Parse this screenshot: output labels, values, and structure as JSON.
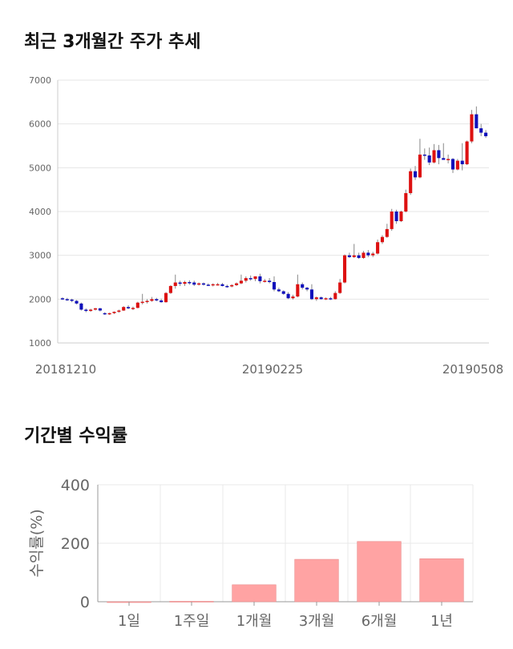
{
  "titles": {
    "price_chart": "최근 3개월간 주가 추세",
    "returns_chart": "기간별 수익률"
  },
  "chart_data": [
    {
      "type": "candlestick",
      "ylim": [
        1000,
        7000
      ],
      "yticks": [
        1000,
        2000,
        3000,
        4000,
        5000,
        6000,
        7000
      ],
      "xtick_labels": [
        "20181210",
        "20190225",
        "20190508"
      ],
      "grid": true,
      "colors": {
        "up": "#dd1111",
        "down": "#1111bb",
        "wick": "#888888"
      },
      "ohlc": [
        [
          2020,
          2040,
          1980,
          2000
        ],
        [
          2000,
          2030,
          1960,
          1990
        ],
        [
          1990,
          2010,
          1930,
          1960
        ],
        [
          1960,
          1980,
          1880,
          1900
        ],
        [
          1900,
          1920,
          1740,
          1760
        ],
        [
          1760,
          1790,
          1700,
          1730
        ],
        [
          1730,
          1780,
          1710,
          1760
        ],
        [
          1760,
          1800,
          1740,
          1790
        ],
        [
          1790,
          1800,
          1720,
          1740
        ],
        [
          1680,
          1700,
          1640,
          1660
        ],
        [
          1660,
          1690,
          1640,
          1680
        ],
        [
          1680,
          1720,
          1660,
          1710
        ],
        [
          1710,
          1760,
          1690,
          1740
        ],
        [
          1740,
          1840,
          1730,
          1820
        ],
        [
          1820,
          1860,
          1770,
          1790
        ],
        [
          1790,
          1830,
          1750,
          1800
        ],
        [
          1800,
          1940,
          1790,
          1920
        ],
        [
          1920,
          2120,
          1880,
          1940
        ],
        [
          1940,
          2000,
          1900,
          1960
        ],
        [
          1960,
          2050,
          1940,
          2000
        ],
        [
          2000,
          2030,
          1950,
          1970
        ],
        [
          1970,
          2010,
          1920,
          1930
        ],
        [
          1930,
          2160,
          1920,
          2140
        ],
        [
          2140,
          2320,
          2120,
          2300
        ],
        [
          2300,
          2560,
          2240,
          2380
        ],
        [
          2380,
          2420,
          2300,
          2350
        ],
        [
          2350,
          2420,
          2300,
          2390
        ],
        [
          2390,
          2430,
          2330,
          2380
        ],
        [
          2380,
          2420,
          2300,
          2330
        ],
        [
          2330,
          2380,
          2310,
          2360
        ],
        [
          2360,
          2380,
          2310,
          2330
        ],
        [
          2330,
          2360,
          2300,
          2320
        ],
        [
          2320,
          2360,
          2290,
          2340
        ],
        [
          2340,
          2370,
          2310,
          2340
        ],
        [
          2340,
          2370,
          2290,
          2300
        ],
        [
          2300,
          2330,
          2260,
          2290
        ],
        [
          2290,
          2340,
          2270,
          2320
        ],
        [
          2320,
          2380,
          2300,
          2360
        ],
        [
          2360,
          2560,
          2340,
          2420
        ],
        [
          2420,
          2520,
          2380,
          2480
        ],
        [
          2480,
          2540,
          2420,
          2460
        ],
        [
          2460,
          2520,
          2410,
          2520
        ],
        [
          2520,
          2580,
          2360,
          2410
        ],
        [
          2410,
          2460,
          2380,
          2420
        ],
        [
          2420,
          2480,
          2360,
          2390
        ],
        [
          2390,
          2520,
          2180,
          2220
        ],
        [
          2220,
          2260,
          2160,
          2180
        ],
        [
          2180,
          2200,
          2100,
          2120
        ],
        [
          2120,
          2160,
          2000,
          2020
        ],
        [
          2020,
          2100,
          1990,
          2060
        ],
        [
          2060,
          2560,
          2040,
          2340
        ],
        [
          2340,
          2380,
          2220,
          2260
        ],
        [
          2260,
          2280,
          2180,
          2220
        ],
        [
          2220,
          2340,
          1980,
          2000
        ],
        [
          2000,
          2060,
          1960,
          2040
        ],
        [
          2040,
          2060,
          1990,
          2000
        ],
        [
          2000,
          2040,
          1980,
          2020
        ],
        [
          2020,
          2050,
          1980,
          2000
        ],
        [
          2000,
          2180,
          1990,
          2140
        ],
        [
          2140,
          2460,
          2120,
          2380
        ],
        [
          2380,
          3020,
          2360,
          3000
        ],
        [
          3000,
          3060,
          2940,
          2960
        ],
        [
          2960,
          3260,
          2940,
          3000
        ],
        [
          3000,
          3060,
          2920,
          2940
        ],
        [
          2940,
          3100,
          2920,
          3060
        ],
        [
          3060,
          3120,
          2960,
          3000
        ],
        [
          3000,
          3080,
          2960,
          3040
        ],
        [
          3040,
          3360,
          3020,
          3300
        ],
        [
          3300,
          3460,
          3260,
          3420
        ],
        [
          3420,
          3720,
          3400,
          3600
        ],
        [
          3600,
          4060,
          3560,
          4000
        ],
        [
          4000,
          4040,
          3720,
          3780
        ],
        [
          3780,
          4020,
          3760,
          4000
        ],
        [
          4000,
          4500,
          3980,
          4420
        ],
        [
          4420,
          4980,
          4380,
          4920
        ],
        [
          4920,
          5040,
          4720,
          4780
        ],
        [
          4780,
          5660,
          4760,
          5300
        ],
        [
          5300,
          5440,
          5180,
          5280
        ],
        [
          5280,
          5460,
          5060,
          5120
        ],
        [
          5120,
          5540,
          5100,
          5400
        ],
        [
          5400,
          5520,
          5080,
          5220
        ],
        [
          5220,
          5560,
          5180,
          5180
        ],
        [
          5180,
          5300,
          5100,
          5200
        ],
        [
          5200,
          5220,
          4880,
          4960
        ],
        [
          4960,
          5200,
          4940,
          5160
        ],
        [
          5160,
          5560,
          4940,
          5080
        ],
        [
          5080,
          5620,
          5060,
          5600
        ],
        [
          5600,
          6320,
          5560,
          6220
        ],
        [
          6220,
          6400,
          5900,
          5900
        ],
        [
          5900,
          6000,
          5720,
          5800
        ],
        [
          5800,
          5860,
          5680,
          5720
        ]
      ]
    },
    {
      "type": "bar",
      "ylabel": "수익률(%)",
      "ylim": [
        0,
        400
      ],
      "yticks": [
        0,
        200,
        400
      ],
      "categories": [
        "1일",
        "1주일",
        "1개월",
        "3개월",
        "6개월",
        "1년"
      ],
      "values": [
        -0.5,
        1.5,
        58,
        145,
        206,
        147
      ],
      "bar_color": "#ffa3a3",
      "grid": true
    }
  ]
}
